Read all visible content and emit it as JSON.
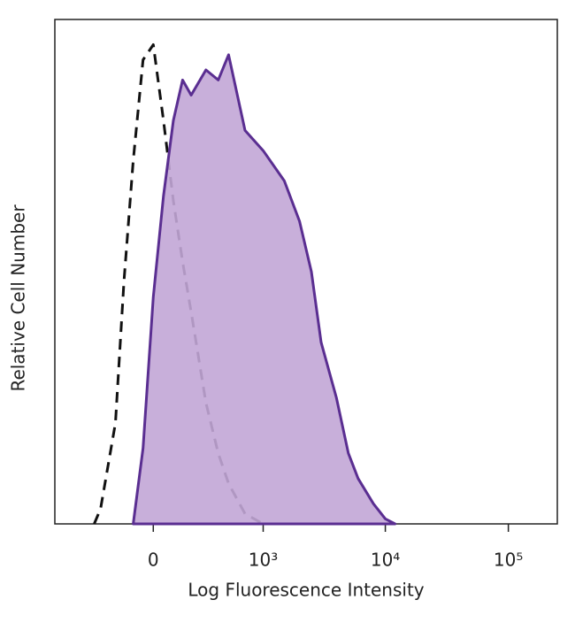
{
  "chart_data": {
    "type": "histogram-overlay",
    "xlabel": "Log Fluorescence Intensity",
    "ylabel": "Relative Cell Number",
    "xscale": "arcsinh",
    "xlim": [
      -800,
      250000
    ],
    "ylim": [
      0,
      100
    ],
    "xticks": [
      0,
      {
        "value": 1000,
        "label": "10³"
      },
      {
        "value": 10000,
        "label": "10⁴"
      },
      {
        "value": 100000,
        "label": "10⁵"
      }
    ],
    "series": [
      {
        "color": "#5a2e91",
        "fill": "#c2a6d6",
        "line_style": "solid",
        "x": [
          -100,
          -50,
          0,
          50,
          100,
          150,
          200,
          300,
          400,
          500,
          700,
          1000,
          1500,
          2000,
          2500,
          3000,
          4000,
          5000,
          6000,
          8000,
          10000,
          12000
        ],
        "values": [
          0,
          15,
          45,
          65,
          80,
          88,
          85,
          90,
          88,
          93,
          78,
          74,
          68,
          60,
          50,
          36,
          25,
          14,
          9,
          4,
          1,
          0
        ]
      },
      {
        "color": "#111111",
        "fill": "none",
        "line_style": "dashed",
        "x": [
          -350,
          -300,
          -200,
          -150,
          -100,
          -50,
          0,
          50,
          100,
          150,
          200,
          300,
          400,
          500,
          700,
          1000
        ],
        "values": [
          0,
          3,
          20,
          48,
          72,
          92,
          95,
          80,
          64,
          52,
          42,
          24,
          14,
          8,
          2,
          0
        ]
      }
    ]
  }
}
